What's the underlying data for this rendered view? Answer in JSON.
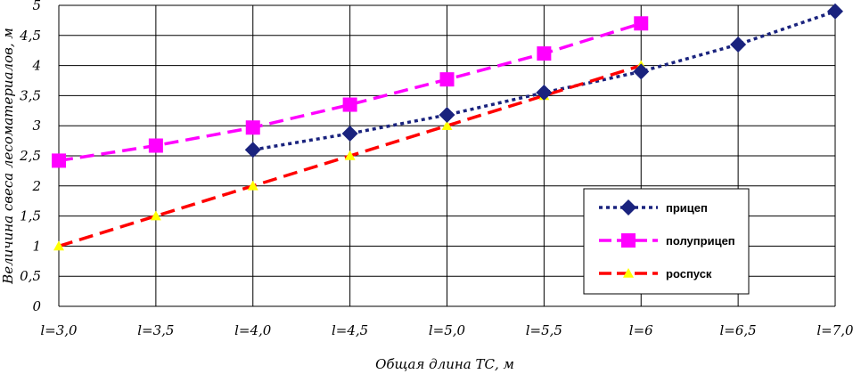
{
  "chart_data": {
    "type": "line",
    "x_categories": [
      "l=3,0",
      "l=3,5",
      "l=4,0",
      "l=4,5",
      "l=5,0",
      "l=5,5",
      "l=6",
      "l=6,5",
      "l=7,0"
    ],
    "x_values": [
      3.0,
      3.5,
      4.0,
      4.5,
      5.0,
      5.5,
      6.0,
      6.5,
      7.0
    ],
    "xlabel": "Общая длина ТС, м",
    "ylabel": "Величина свеса лесоматериалов, м",
    "ylim": [
      0,
      5
    ],
    "y_ticks": [
      "0",
      "0,5",
      "1",
      "1,5",
      "2",
      "2,5",
      "3",
      "3,5",
      "4",
      "4,5",
      "5"
    ],
    "y_tick_values": [
      0,
      0.5,
      1,
      1.5,
      2,
      2.5,
      3,
      3.5,
      4,
      4.5,
      5
    ],
    "grid": true,
    "legend_position": "bottom-right",
    "series": [
      {
        "name": "прицеп",
        "color": "#1a237e",
        "marker": "diamond",
        "line_style": "dotted",
        "x": [
          4.0,
          4.5,
          5.0,
          5.5,
          6.0,
          6.5,
          7.0
        ],
        "y": [
          2.6,
          2.87,
          3.18,
          3.55,
          3.9,
          4.35,
          4.9
        ]
      },
      {
        "name": "полуприцеп",
        "color": "#ff00ff",
        "marker": "square",
        "line_style": "dashed",
        "x": [
          3.0,
          3.5,
          4.0,
          4.5,
          5.0,
          5.5,
          6.0
        ],
        "y": [
          2.42,
          2.67,
          2.97,
          3.35,
          3.77,
          4.2,
          4.7
        ]
      },
      {
        "name": "роспуск",
        "color": "#ff0000",
        "marker": "triangle",
        "marker_color": "#ffff00",
        "line_style": "dashed",
        "x": [
          3.0,
          3.5,
          4.0,
          4.5,
          5.0,
          5.5,
          6.0
        ],
        "y": [
          1.0,
          1.5,
          2.0,
          2.5,
          3.0,
          3.5,
          4.0
        ]
      }
    ]
  }
}
